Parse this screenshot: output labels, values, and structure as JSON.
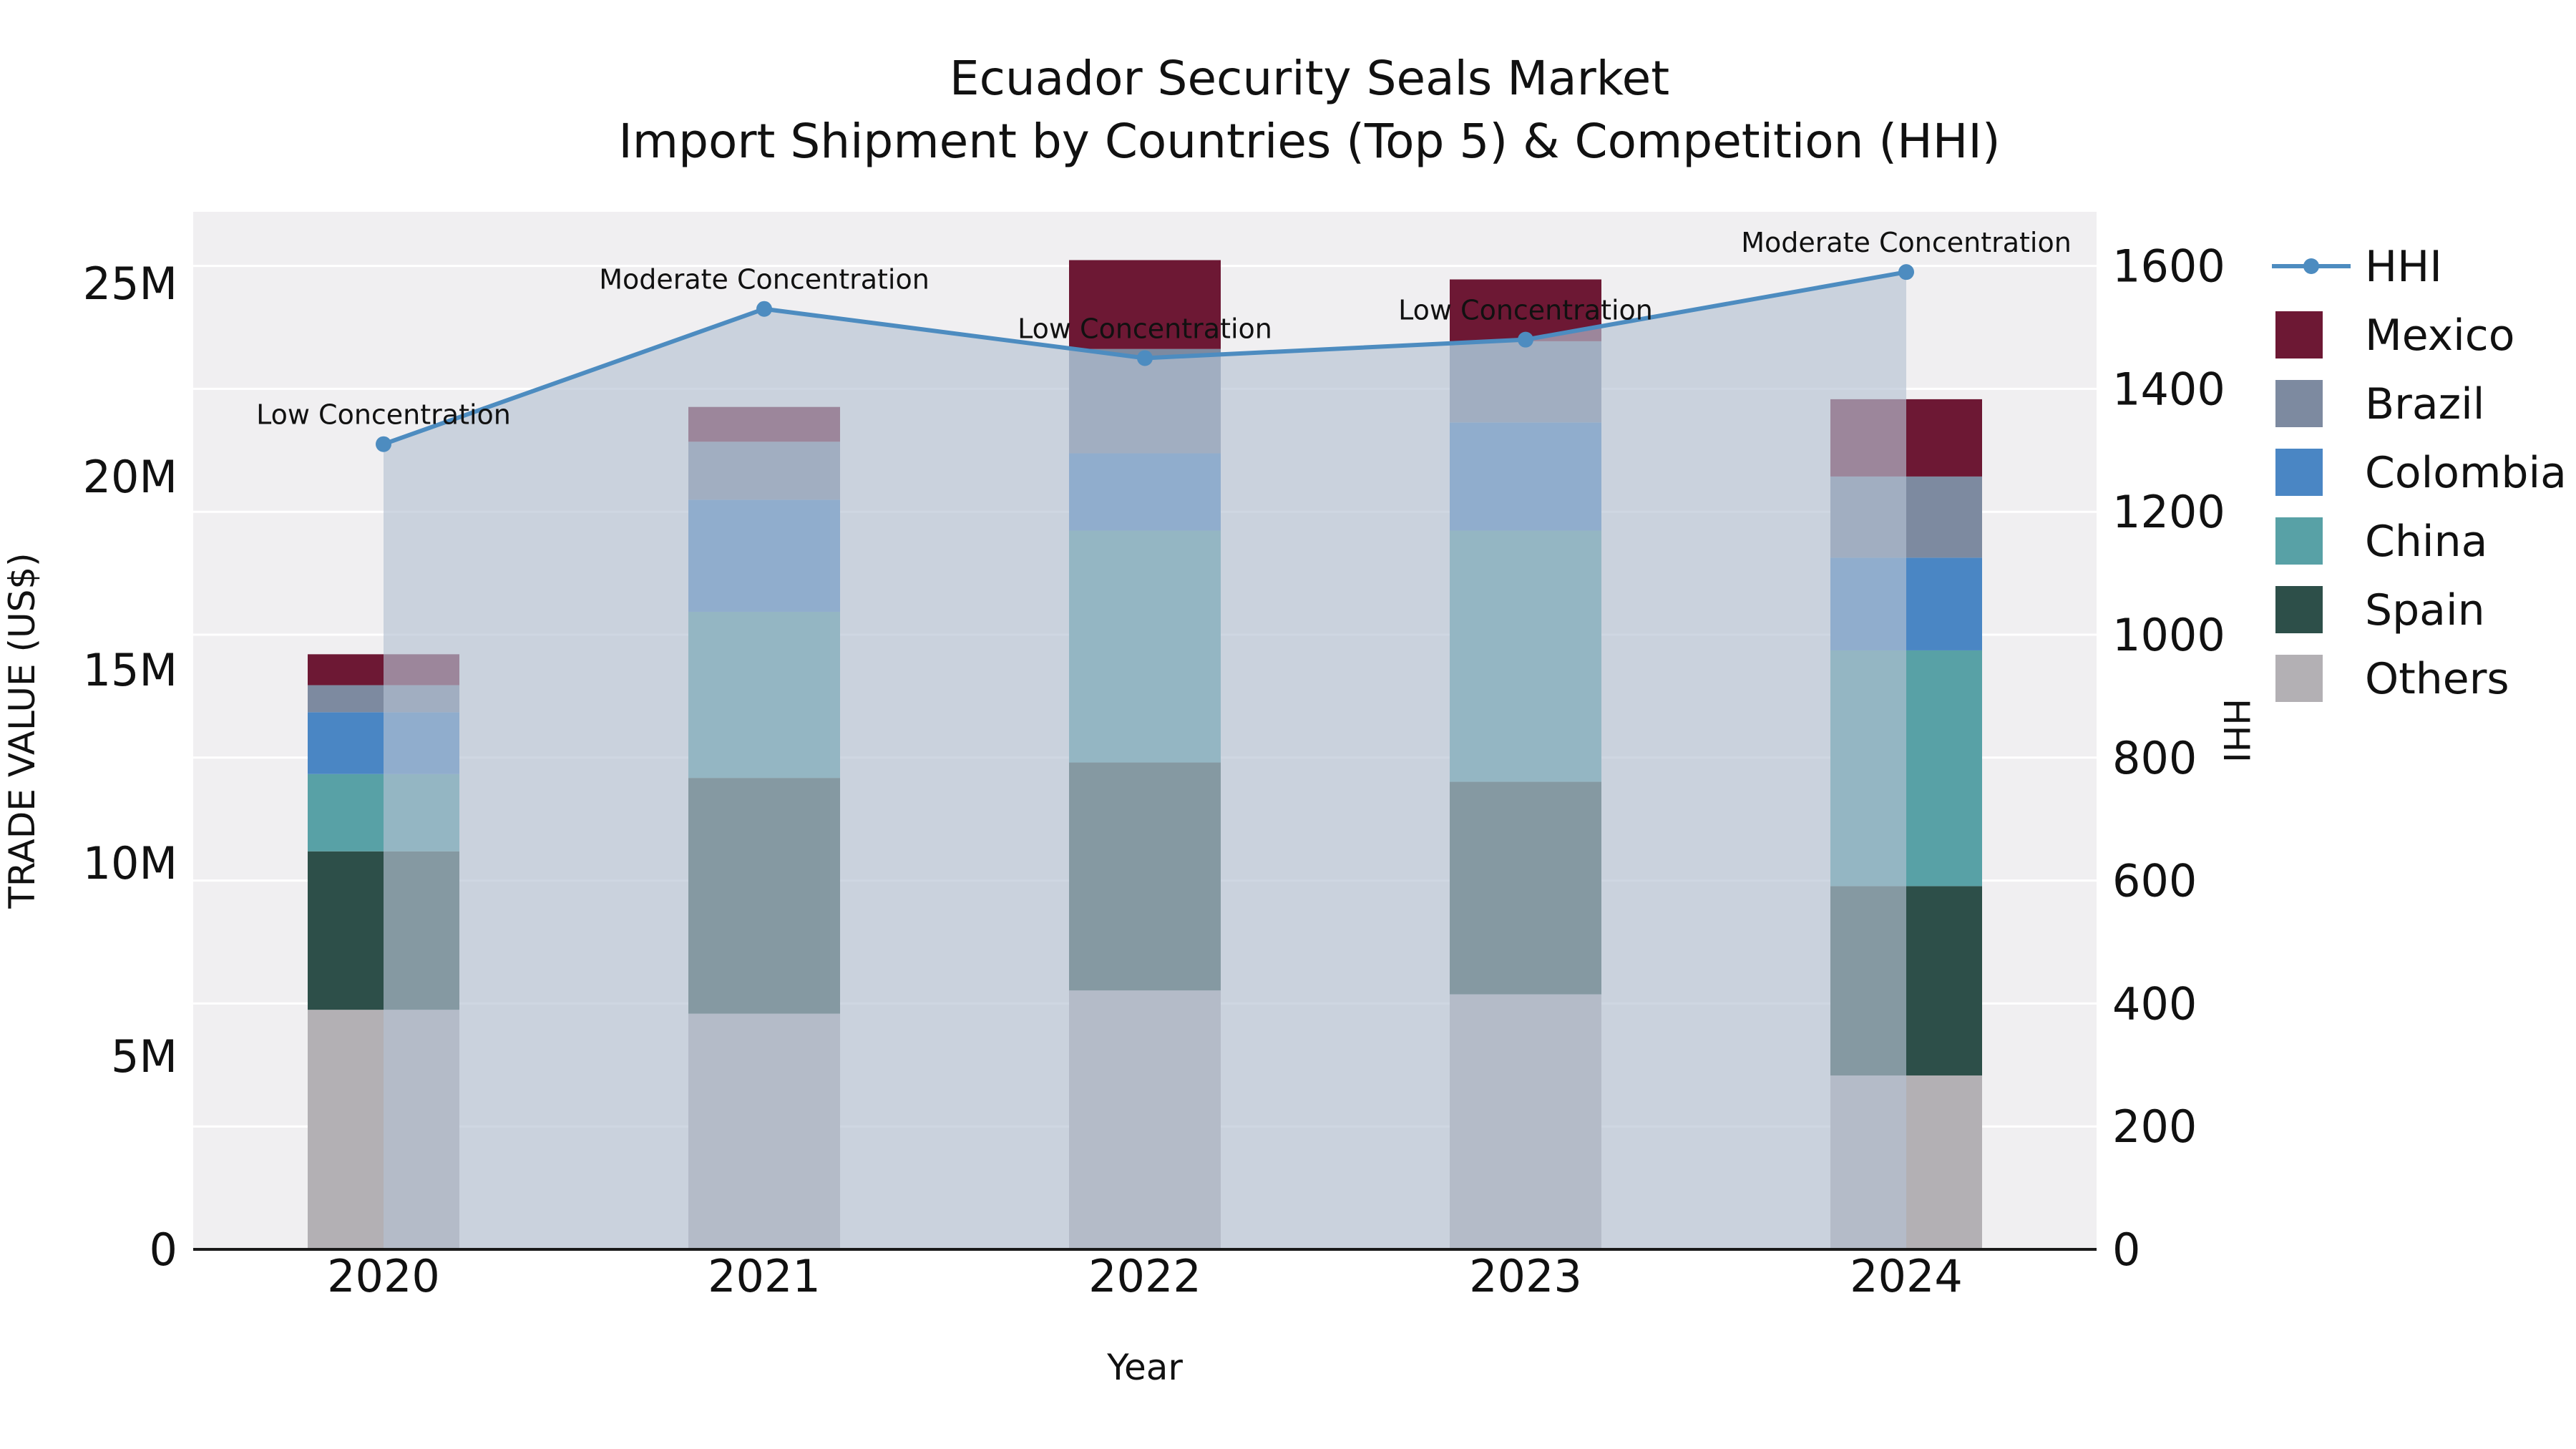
{
  "chart_data": {
    "type": "bar",
    "subtype": "stacked-bar-with-line-overlay",
    "title": "Ecuador Security Seals Market",
    "subtitle": "Import Shipment by Countries (Top 5) & Competition (HHI)",
    "xlabel": "Year",
    "ylabel_left": "TRADE VALUE (US$)",
    "ylabel_right": "HHI",
    "categories": [
      "2020",
      "2021",
      "2022",
      "2023",
      "2024"
    ],
    "values_unit": "millions US$",
    "series": [
      {
        "name": "Others",
        "color": "#b3b0b4",
        "values": [
          6.2,
          6.1,
          6.7,
          6.6,
          4.5
        ]
      },
      {
        "name": "Spain",
        "color": "#2d4f49",
        "values": [
          4.1,
          6.1,
          5.9,
          5.5,
          4.9
        ]
      },
      {
        "name": "China",
        "color": "#58a1a6",
        "values": [
          2.0,
          4.3,
          6.0,
          6.5,
          6.1
        ]
      },
      {
        "name": "Colombia",
        "color": "#4a86c4",
        "values": [
          1.6,
          2.9,
          2.0,
          2.8,
          2.4
        ]
      },
      {
        "name": "Brazil",
        "color": "#7d8aa0",
        "values": [
          0.7,
          1.5,
          2.7,
          2.1,
          2.1
        ]
      },
      {
        "name": "Mexico",
        "color": "#6d1834",
        "values": [
          0.8,
          0.9,
          2.3,
          1.6,
          2.0
        ]
      }
    ],
    "line_series": {
      "name": "HHI",
      "color": "#4d8cc0",
      "area_fill": "#b5c2d3",
      "area_opacity": 0.65,
      "values": [
        1310,
        1530,
        1450,
        1480,
        1590
      ],
      "annotations": [
        "Low Concentration",
        "Moderate Concentration",
        "Low Concentration",
        "Low Concentration",
        "Moderate Concentration"
      ]
    },
    "left_axis": {
      "tick_labels": [
        "0",
        "5M",
        "10M",
        "15M",
        "20M",
        "25M"
      ],
      "tick_values": [
        0,
        5,
        10,
        15,
        20,
        25
      ],
      "max": 26.85
    },
    "right_axis": {
      "tick_labels": [
        "0",
        "200",
        "400",
        "600",
        "800",
        "1000",
        "1200",
        "1400",
        "1600"
      ],
      "tick_values": [
        0,
        200,
        400,
        600,
        800,
        1000,
        1200,
        1400,
        1600
      ],
      "max": 1688
    },
    "legend_order": [
      "HHI",
      "Mexico",
      "Brazil",
      "Colombia",
      "China",
      "Spain",
      "Others"
    ],
    "style": {
      "plot_bg": "#f0eff1",
      "grid_color": "#ffffff",
      "axis_line_color": "#1a1a1a",
      "text_color": "#111111"
    }
  }
}
